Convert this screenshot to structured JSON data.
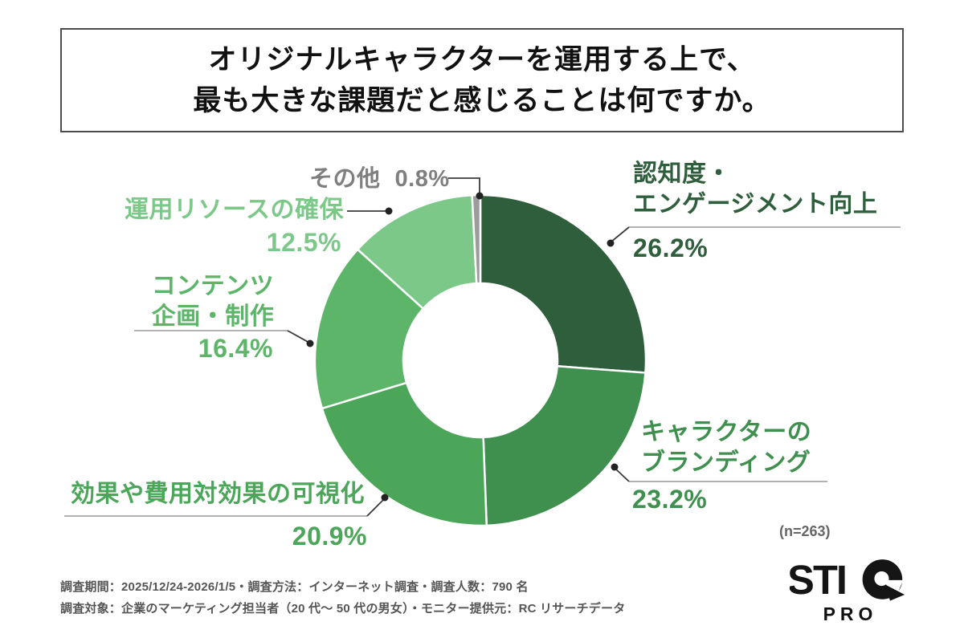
{
  "title": {
    "line1": "オリジナルキャラクターを運用する上で、",
    "line2": "最も大きな課題だと感じることは何ですか。"
  },
  "chart_data": {
    "type": "pie",
    "subtype": "donut",
    "title": "オリジナルキャラクターを運用する上で、最も大きな課題だと感じることは何ですか。",
    "unit": "%",
    "start_angle_deg": 0,
    "direction": "clockwise",
    "inner_radius_ratio": 0.466,
    "sample_size": 263,
    "segments": [
      {
        "label": "認知度・エンゲージメント向上",
        "value": 26.2,
        "color": "#2E5E3C"
      },
      {
        "label": "キャラクターのブランディング",
        "value": 23.2,
        "color": "#3F8F4F"
      },
      {
        "label": "効果や費用対効果の可視化",
        "value": 20.9,
        "color": "#4CA65A"
      },
      {
        "label": "コンテンツ企画・制作",
        "value": 16.4,
        "color": "#5CB569"
      },
      {
        "label": "運用リソースの確保",
        "value": 12.5,
        "color": "#7CC889"
      },
      {
        "label": "その他",
        "value": 0.8,
        "color": "#9C9C9C",
        "label_color": "#7F7F7F"
      }
    ]
  },
  "callouts": {
    "awareness": {
      "line1": "認知度・",
      "line2": "エンゲージメント向上",
      "pct": "26.2%"
    },
    "branding": {
      "line1": "キャラクターの",
      "line2": "ブランディング",
      "pct": "23.2%"
    },
    "visibility": {
      "line1": "効果や費用対効果の可視化",
      "pct": "20.9%"
    },
    "content": {
      "line1": "コンテンツ",
      "line2": "企画・制作",
      "pct": "16.4%"
    },
    "resources": {
      "line1": "運用リソースの確保",
      "pct": "12.5%"
    },
    "others": {
      "label": "その他",
      "pct": "0.8%"
    }
  },
  "sample_note": "(n=263)",
  "footer": {
    "line1": "調査期間：2025/12/24-2026/1/5・調査方法：インターネット調査・調査人数：790 名",
    "line2": "調査対象：企業のマーケティング担当者（20 代〜 50 代の男女）・モニター提供元：RC リサーチデータ"
  },
  "logo": {
    "name": "STIQ",
    "sub": "PRO"
  }
}
